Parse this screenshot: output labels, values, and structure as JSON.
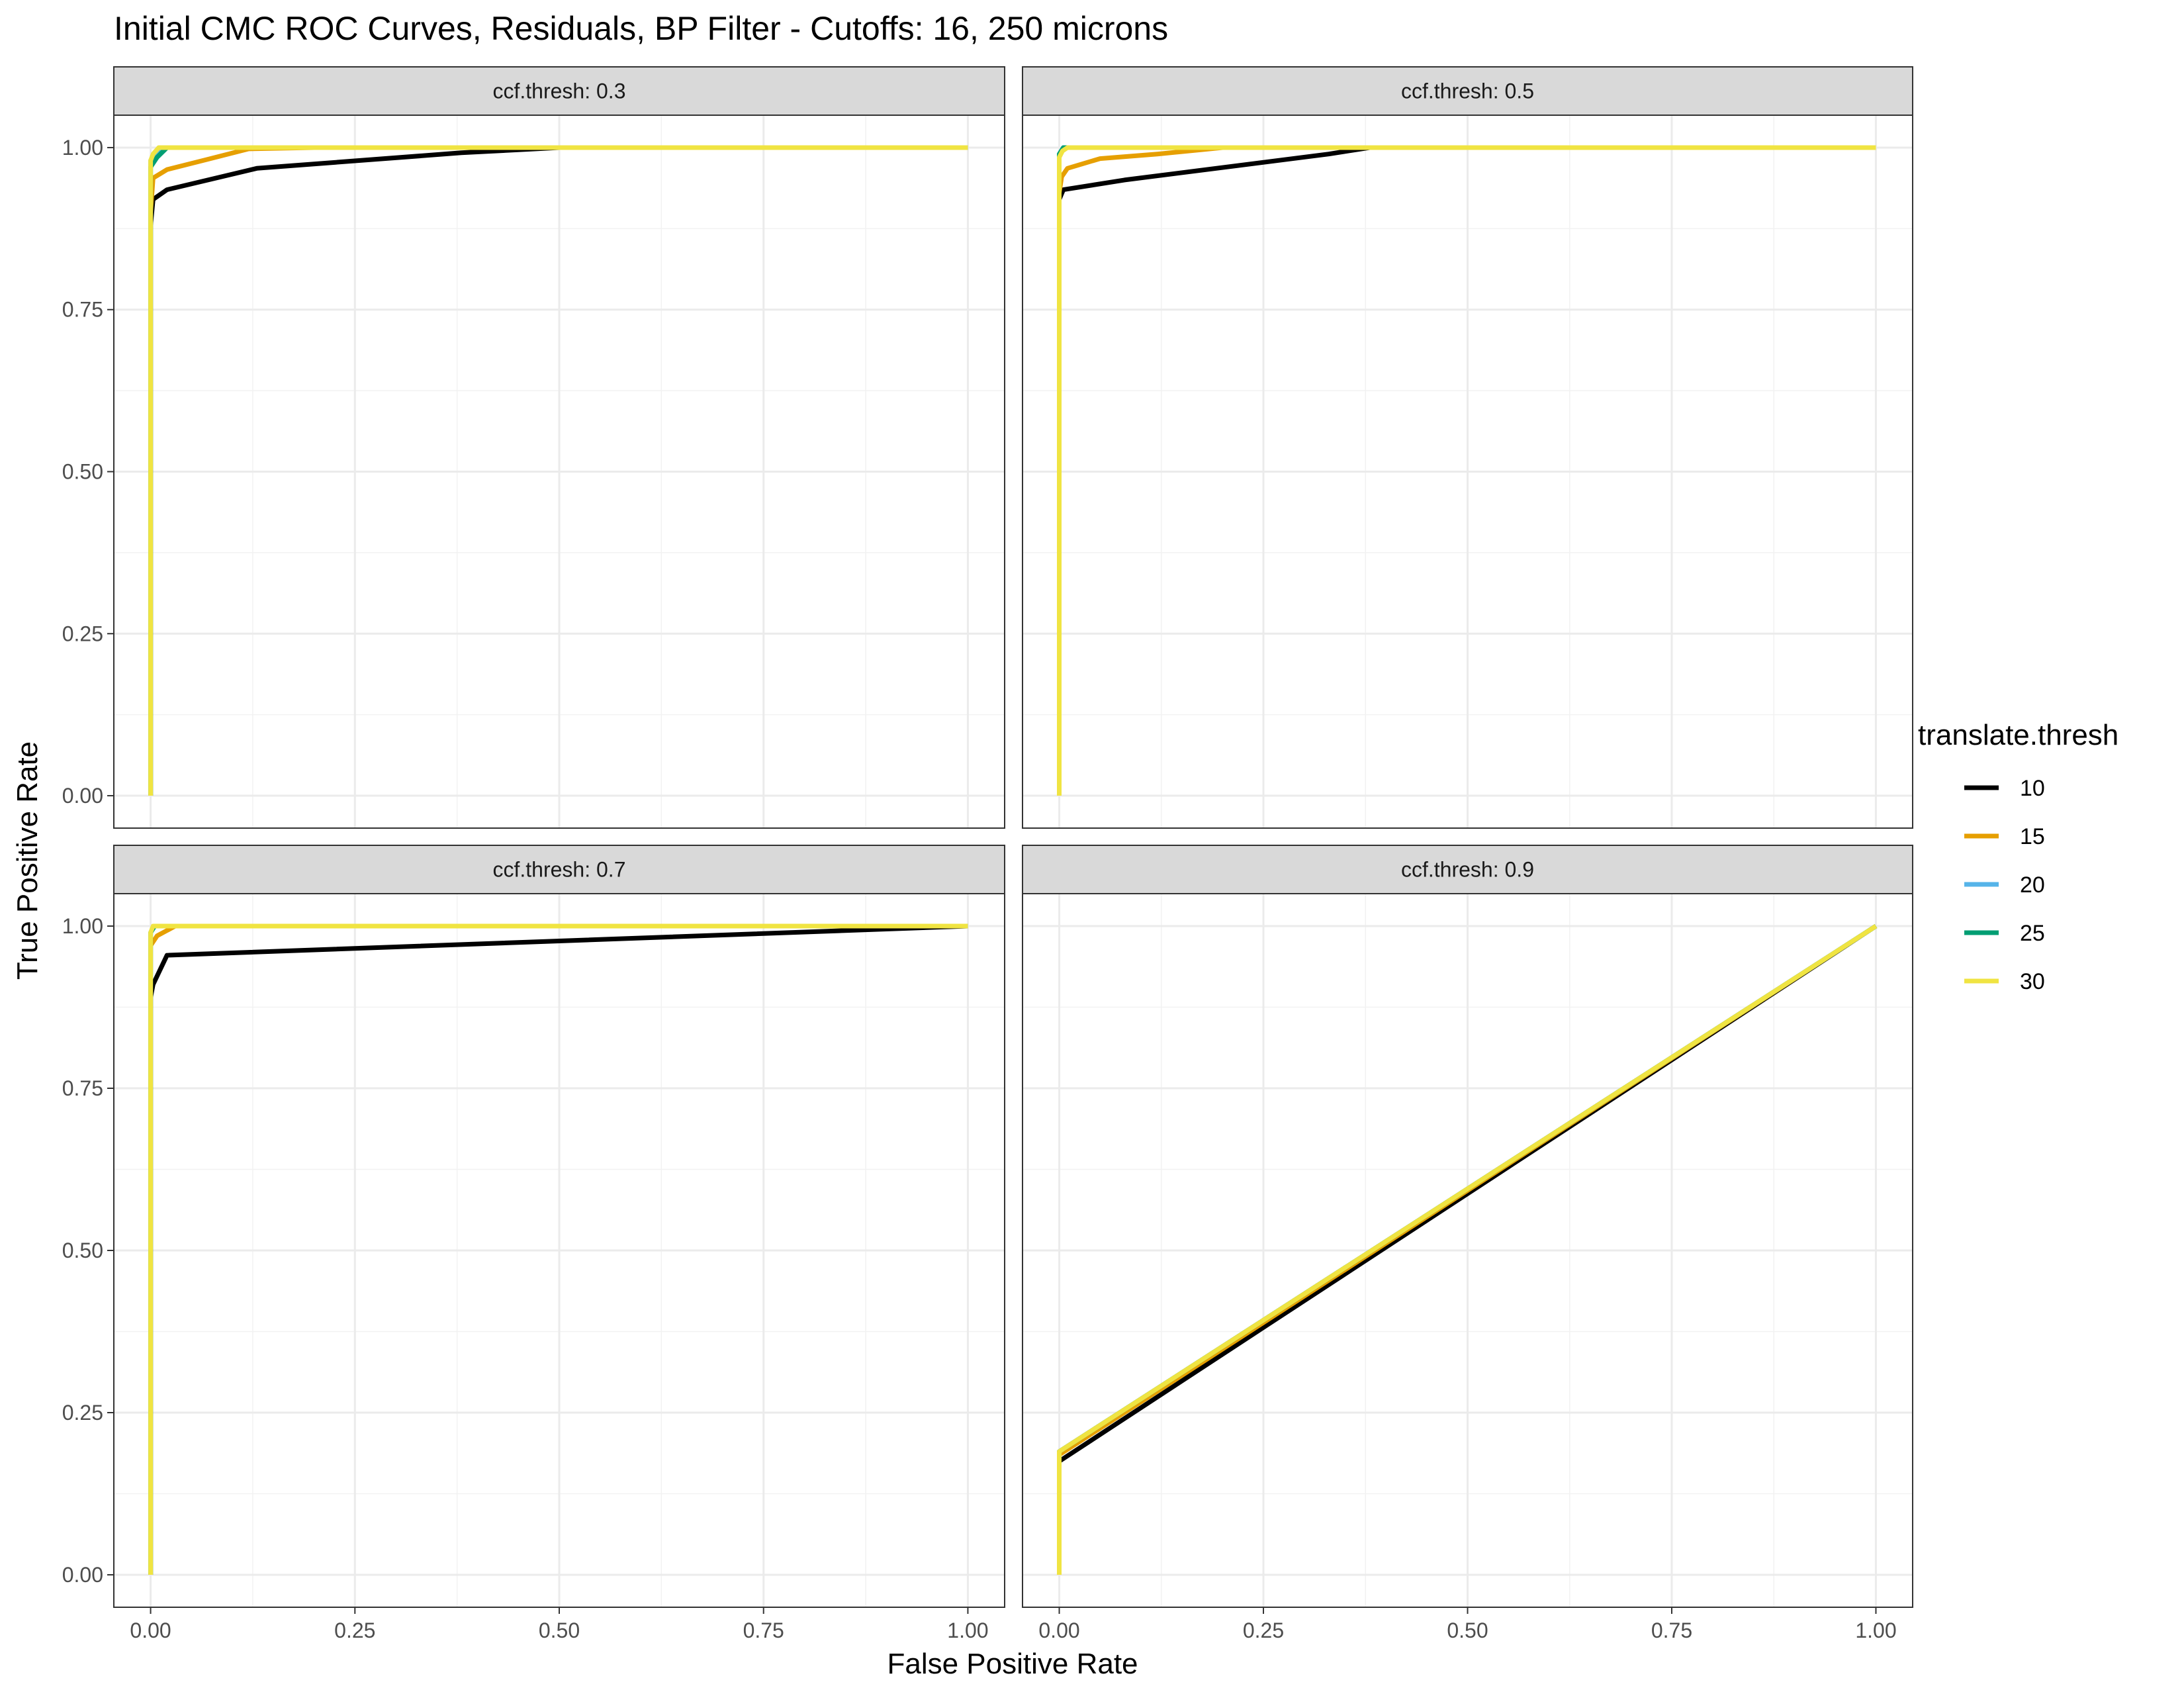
{
  "chart_data": {
    "type": "line",
    "title": "Initial CMC ROC Curves, Residuals, BP Filter - Cutoffs: 16, 250 microns",
    "xlabel": "False Positive Rate",
    "ylabel": "True Positive Rate",
    "xlim": [
      0,
      1
    ],
    "ylim": [
      0,
      1
    ],
    "x_ticks": [
      "0.00",
      "0.25",
      "0.50",
      "0.75",
      "1.00"
    ],
    "y_ticks": [
      "0.00",
      "0.25",
      "0.50",
      "0.75",
      "1.00"
    ],
    "grid": true,
    "legend": {
      "title": "translate.thresh",
      "placement": "right",
      "entries": [
        {
          "label": "10",
          "color": "#000000"
        },
        {
          "label": "15",
          "color": "#E69F00"
        },
        {
          "label": "20",
          "color": "#56B4E9"
        },
        {
          "label": "25",
          "color": "#009E73"
        },
        {
          "label": "30",
          "color": "#F0E442"
        }
      ]
    },
    "panels": [
      {
        "label": "ccf.thresh: 0.3",
        "series": [
          {
            "name": "10",
            "x": [
              0,
              0,
              0.003,
              0.02,
              0.13,
              0.38,
              0.5,
              1
            ],
            "y": [
              0,
              0.88,
              0.92,
              0.935,
              0.968,
              0.992,
              1,
              1
            ]
          },
          {
            "name": "15",
            "x": [
              0,
              0,
              0.003,
              0.02,
              0.07,
              0.12,
              0.2,
              1
            ],
            "y": [
              0,
              0.9,
              0.953,
              0.966,
              0.982,
              0.998,
              1,
              1
            ]
          },
          {
            "name": "20",
            "x": [
              0,
              0,
              0.005,
              0.02,
              1
            ],
            "y": [
              0,
              0.98,
              0.99,
              1,
              1
            ]
          },
          {
            "name": "25",
            "x": [
              0,
              0,
              0.008,
              0.02,
              1
            ],
            "y": [
              0,
              0.97,
              0.985,
              1,
              1
            ]
          },
          {
            "name": "30",
            "x": [
              0,
              0,
              0.003,
              0.01,
              1
            ],
            "y": [
              0,
              0.98,
              0.99,
              1,
              1
            ]
          }
        ]
      },
      {
        "label": "ccf.thresh: 0.5",
        "series": [
          {
            "name": "10",
            "x": [
              0,
              0,
              0.005,
              0.08,
              0.33,
              0.38,
              1
            ],
            "y": [
              0,
              0.92,
              0.935,
              0.95,
              0.99,
              1,
              1
            ]
          },
          {
            "name": "15",
            "x": [
              0,
              0,
              0.003,
              0.01,
              0.05,
              0.12,
              0.2,
              1
            ],
            "y": [
              0,
              0.93,
              0.955,
              0.968,
              0.983,
              0.99,
              1,
              1
            ]
          },
          {
            "name": "20",
            "x": [
              0,
              0,
              0.005,
              1
            ],
            "y": [
              0,
              0.99,
              1,
              1
            ]
          },
          {
            "name": "25",
            "x": [
              0,
              0,
              0.005,
              1
            ],
            "y": [
              0,
              0.99,
              1,
              1
            ]
          },
          {
            "name": "30",
            "x": [
              0,
              0,
              0.004,
              0.01,
              1
            ],
            "y": [
              0,
              0.985,
              0.995,
              1,
              1
            ]
          }
        ]
      },
      {
        "label": "ccf.thresh: 0.7",
        "series": [
          {
            "name": "10",
            "x": [
              0,
              0,
              0.003,
              0.02,
              1
            ],
            "y": [
              0,
              0.89,
              0.91,
              0.955,
              1
            ]
          },
          {
            "name": "15",
            "x": [
              0,
              0,
              0.008,
              0.03,
              1
            ],
            "y": [
              0,
              0.97,
              0.985,
              1,
              1
            ]
          },
          {
            "name": "20",
            "x": [
              0,
              0,
              0.005,
              1
            ],
            "y": [
              0,
              0.99,
              1,
              1
            ]
          },
          {
            "name": "25",
            "x": [
              0,
              0,
              0.005,
              1
            ],
            "y": [
              0,
              0.99,
              1,
              1
            ]
          },
          {
            "name": "30",
            "x": [
              0,
              0,
              0.003,
              1
            ],
            "y": [
              0,
              0.99,
              1,
              1
            ]
          }
        ]
      },
      {
        "label": "ccf.thresh: 0.9",
        "series": [
          {
            "name": "10",
            "x": [
              0,
              0,
              1
            ],
            "y": [
              0,
              0.175,
              1
            ]
          },
          {
            "name": "15",
            "x": [
              0,
              0,
              1
            ],
            "y": [
              0,
              0.185,
              1
            ]
          },
          {
            "name": "20",
            "x": [
              0,
              0,
              1
            ],
            "y": [
              0,
              0.19,
              1
            ]
          },
          {
            "name": "25",
            "x": [
              0,
              0,
              1
            ],
            "y": [
              0,
              0.19,
              1
            ]
          },
          {
            "name": "30",
            "x": [
              0,
              0,
              1
            ],
            "y": [
              0,
              0.19,
              1
            ]
          }
        ]
      }
    ]
  }
}
